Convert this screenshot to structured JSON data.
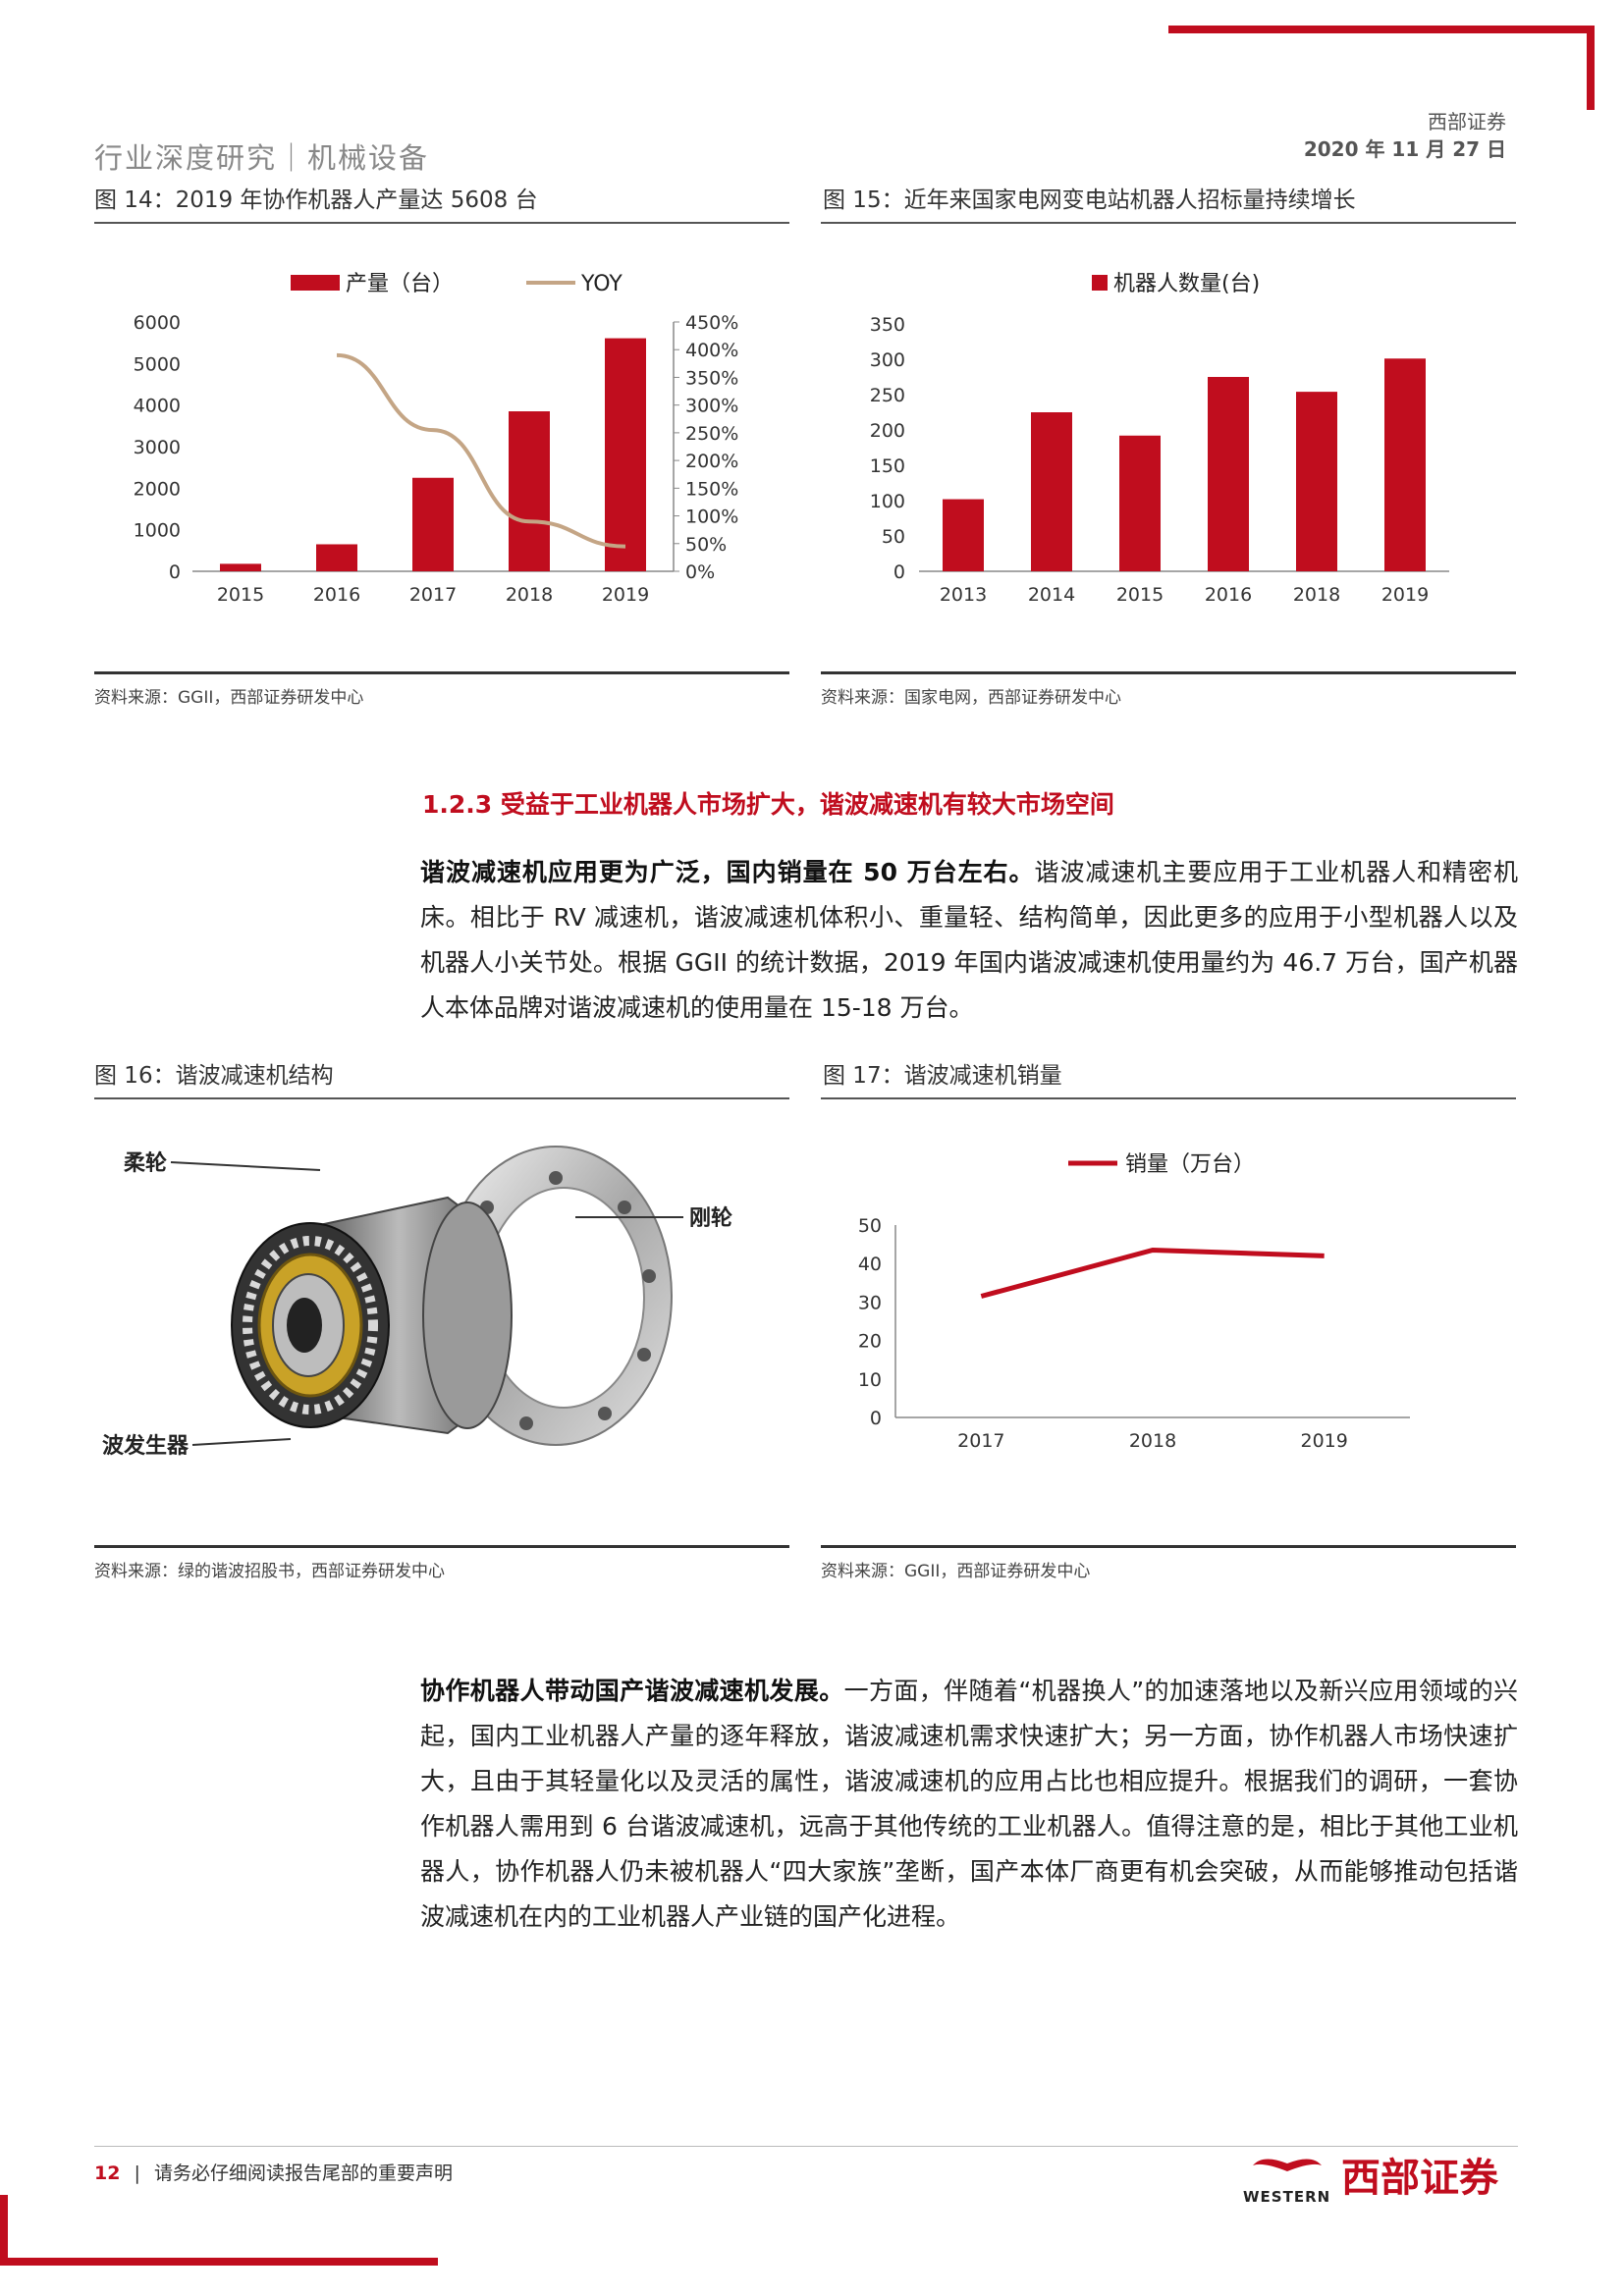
{
  "header": {
    "title": "行业深度研究｜机械设备",
    "broker": "西部证券",
    "date": "2020 年 11 月 27 日"
  },
  "fig14": {
    "caption": "图 14：2019 年协作机器人产量达 5608 台",
    "source": "资料来源：GGII，西部证券研发中心"
  },
  "fig15": {
    "caption": "图 15：近年来国家电网变电站机器人招标量持续增长",
    "source": "资料来源：国家电网，西部证券研发中心"
  },
  "fig16": {
    "caption": "图 16：谐波减速机结构",
    "source": "资料来源：绿的谐波招股书，西部证券研发中心",
    "labels": {
      "flexspline": "柔轮",
      "circular_spline": "刚轮",
      "wave_generator": "波发生器"
    }
  },
  "fig17": {
    "caption": "图 17：谐波减速机销量",
    "source": "资料来源：GGII，西部证券研发中心"
  },
  "section": {
    "heading": "1.2.3  受益于工业机器人市场扩大，谐波减速机有较大市场空间"
  },
  "para1": {
    "lead": "谐波减速机应用更为广泛，国内销量在 50 万台左右。",
    "body": "谐波减速机主要应用于工业机器人和精密机床。相比于 RV 减速机，谐波减速机体积小、重量轻、结构简单，因此更多的应用于小型机器人以及机器人小关节处。根据 GGII 的统计数据，2019 年国内谐波减速机使用量约为 46.7 万台，国产机器人本体品牌对谐波减速机的使用量在 15-18 万台。"
  },
  "para2": {
    "lead": "协作机器人带动国产谐波减速机发展。",
    "body": "一方面，伴随着“机器换人”的加速落地以及新兴应用领域的兴起，国内工业机器人产量的逐年释放，谐波减速机需求快速扩大；另一方面，协作机器人市场快速扩大，且由于其轻量化以及灵活的属性，谐波减速机的应用占比也相应提升。根据我们的调研，一套协作机器人需用到 6 台谐波减速机，远高于其他传统的工业机器人。值得注意的是，相比于其他工业机器人，协作机器人仍未被机器人“四大家族”垄断，国产本体厂商更有机会突破，从而能够推动包括谐波减速机在内的工业机器人产业链的国产化进程。"
  },
  "footer": {
    "page_number": "12",
    "separator": "|",
    "notice": "请务必仔细阅读报告尾部的重要声明",
    "logo_en": "WESTERN",
    "logo_cn": "西部证券"
  },
  "colors": {
    "accent": "#c00d1e",
    "yoy_line": "#c4a585"
  },
  "chart_data": [
    {
      "id": "fig14",
      "type": "bar",
      "categories": [
        "2015",
        "2016",
        "2017",
        "2018",
        "2019"
      ],
      "series": [
        {
          "name": "产量（台）",
          "type": "bar",
          "axis": "left",
          "values": [
            180,
            650,
            2250,
            3850,
            5608
          ]
        },
        {
          "name": "YOY",
          "type": "line",
          "axis": "right",
          "values": [
            null,
            390,
            255,
            90,
            45
          ]
        }
      ],
      "ylim": [
        0,
        6000
      ],
      "y2lim": [
        0,
        450
      ],
      "yticks": [
        "0",
        "1000",
        "2000",
        "3000",
        "4000",
        "5000",
        "6000"
      ],
      "y2ticks": [
        "0%",
        "50%",
        "100%",
        "150%",
        "200%",
        "250%",
        "300%",
        "350%",
        "400%",
        "450%"
      ],
      "legend": "top"
    },
    {
      "id": "fig15",
      "type": "bar",
      "categories": [
        "2013",
        "2014",
        "2015",
        "2016",
        "2018",
        "2019"
      ],
      "series": [
        {
          "name": "机器人数量(台)",
          "values": [
            102,
            225,
            192,
            275,
            254,
            301
          ]
        }
      ],
      "ylim": [
        0,
        350
      ],
      "yticks": [
        "0",
        "50",
        "100",
        "150",
        "200",
        "250",
        "300",
        "350"
      ],
      "legend": "top"
    },
    {
      "id": "fig17",
      "type": "line",
      "categories": [
        "2017",
        "2018",
        "2019"
      ],
      "series": [
        {
          "name": "销量（万台）",
          "values": [
            31.5,
            43.5,
            42
          ]
        }
      ],
      "ylim": [
        0,
        50
      ],
      "yticks": [
        "0",
        "10",
        "20",
        "30",
        "40",
        "50"
      ],
      "legend": "top"
    }
  ]
}
